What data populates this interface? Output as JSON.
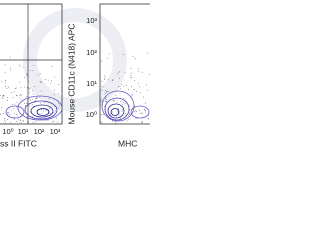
{
  "panels": [
    {
      "x_axis_label": "ss II FITC",
      "x_ticks": [
        "10⁰",
        "10¹",
        "10²",
        "10³"
      ]
    },
    {
      "y_axis_label": "Mouse CD11c (N418) APC",
      "y_ticks": [
        "10⁰",
        "10¹",
        "10²",
        "10³"
      ],
      "x_axis_label": "MHC"
    }
  ]
}
